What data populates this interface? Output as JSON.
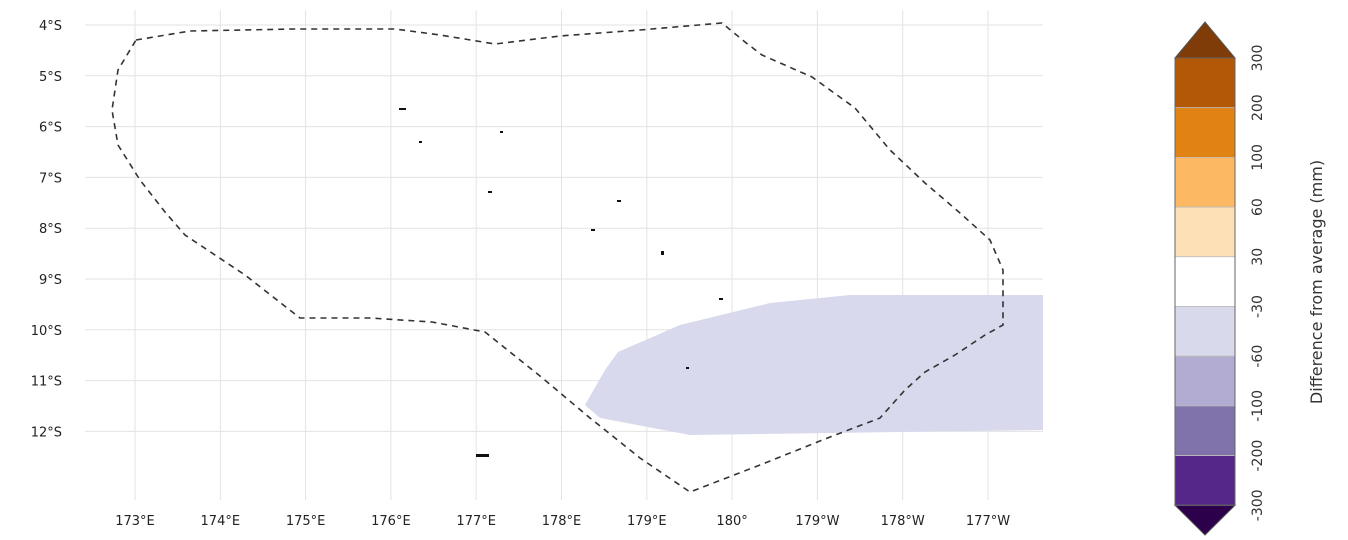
{
  "map": {
    "lat_ticks": [
      "4°S",
      "5°S",
      "6°S",
      "7°S",
      "8°S",
      "9°S",
      "10°S",
      "11°S",
      "12°S"
    ],
    "lon_ticks": [
      "173°E",
      "174°E",
      "175°E",
      "176°E",
      "177°E",
      "178°E",
      "179°E",
      "180°",
      "179°W",
      "178°W",
      "177°W"
    ],
    "anomaly_region_class": "-30 to -60 mm",
    "anomaly_region_color": "#d8d9ed",
    "boundary_style": "dashed",
    "grid": true
  },
  "colorbar": {
    "title": "Difference from average (mm)",
    "labels": [
      "300",
      "200",
      "100",
      "60",
      "30",
      "-30",
      "-60",
      "-100",
      "-200",
      "-300"
    ],
    "colors": {
      "top_extend": "#7f3b08",
      "bins_top_to_bottom": [
        "#b35806",
        "#e08214",
        "#fdb863",
        "#fee0b6",
        "#ffffff",
        "#d8daeb",
        "#b2abd2",
        "#8073ac",
        "#542788"
      ],
      "bottom_extend": "#2d004b"
    }
  }
}
